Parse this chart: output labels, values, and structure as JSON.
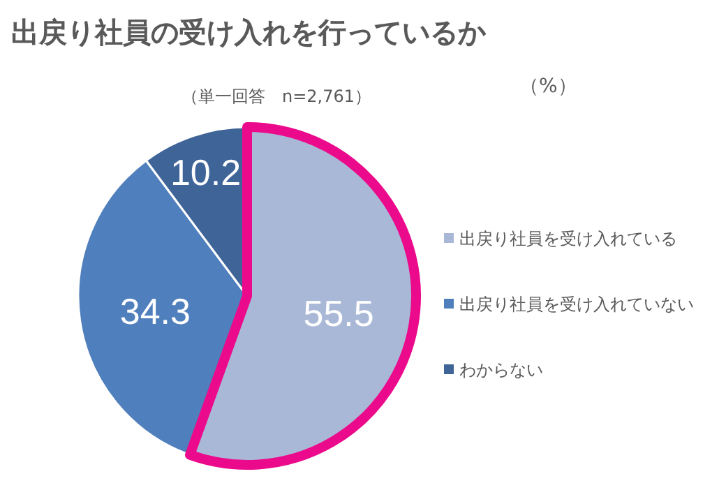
{
  "chart_data": {
    "type": "pie",
    "title": "出戻り社員の受け入れを行っているか",
    "subtitle": "（単一回答　n=2,761）",
    "annotations": [
      "（%）"
    ],
    "categories": [
      "出戻り社員を受け入れている",
      "出戻り社員を受け入れていない",
      "わからない"
    ],
    "values": [
      55.5,
      34.3,
      10.2
    ],
    "colors": [
      "#a9b8d6",
      "#4f7fbc",
      "#3f6497"
    ],
    "data_labels": true,
    "legend": "right"
  }
}
